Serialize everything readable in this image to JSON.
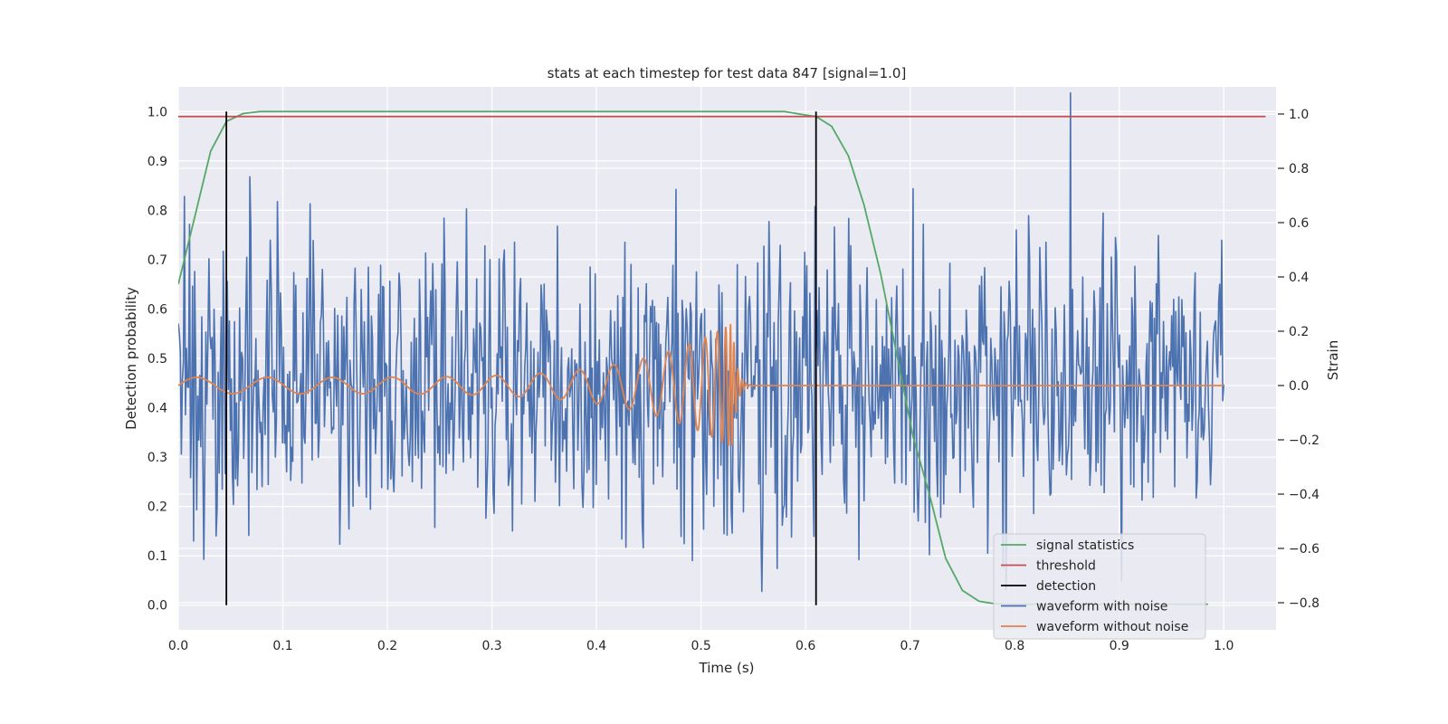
{
  "chart_data": {
    "type": "line",
    "title": "stats at each timestep for test data 847 [signal=1.0]",
    "xlabel": "Time (s)",
    "ylabel_left": "Detection probability",
    "ylabel_right": "Strain",
    "xlim": [
      0.0,
      1.05
    ],
    "ylim_left": [
      -0.05,
      1.05
    ],
    "ylim_right": [
      -0.9,
      1.1
    ],
    "x_ticks": [
      "0.0",
      "0.1",
      "0.2",
      "0.3",
      "0.4",
      "0.5",
      "0.6",
      "0.7",
      "0.8",
      "0.9",
      "1.0"
    ],
    "y_ticks_left": [
      "0.0",
      "0.1",
      "0.2",
      "0.3",
      "0.4",
      "0.5",
      "0.6",
      "0.7",
      "0.8",
      "0.9",
      "1.0"
    ],
    "y_ticks_right": [
      "−0.8",
      "−0.6",
      "−0.4",
      "−0.2",
      "0.0",
      "0.2",
      "0.4",
      "0.6",
      "0.8",
      "1.0"
    ],
    "grid": true,
    "legend_placement": "lower-right",
    "legend": [
      {
        "label": "signal statistics",
        "color": "#55a868"
      },
      {
        "label": "threshold",
        "color": "#c44e52"
      },
      {
        "label": "detection",
        "color": "#000000"
      },
      {
        "label": "waveform with noise",
        "color": "#4c72b0"
      },
      {
        "label": "waveform without noise",
        "color": "#dd8452"
      }
    ],
    "signal_statistics": {
      "axis": "left",
      "x": [
        0.0,
        0.015,
        0.031,
        0.046,
        0.062,
        0.078,
        0.1,
        0.2,
        0.3,
        0.4,
        0.5,
        0.58,
        0.594,
        0.61,
        0.625,
        0.641,
        0.656,
        0.672,
        0.688,
        0.703,
        0.719,
        0.734,
        0.75,
        0.766,
        0.781,
        0.797,
        0.82,
        0.85,
        0.9,
        0.95,
        0.985
      ],
      "y": [
        0.65,
        0.78,
        0.92,
        0.98,
        0.996,
        1.0,
        1.0,
        1.0,
        1.0,
        1.0,
        1.0,
        1.0,
        0.995,
        0.99,
        0.97,
        0.91,
        0.81,
        0.67,
        0.5,
        0.34,
        0.22,
        0.095,
        0.03,
        0.008,
        0.003,
        0.002,
        0.002,
        0.002,
        0.002,
        0.002,
        0.002
      ]
    },
    "threshold": {
      "axis": "left",
      "value": 0.99,
      "x_range": [
        0.0,
        1.04
      ]
    },
    "detections": {
      "axis": "left",
      "x": [
        0.046,
        0.61
      ],
      "y_range": [
        0.0,
        1.0
      ]
    },
    "waveform_with_noise": {
      "axis": "right",
      "x_range": [
        0.0,
        1.0
      ],
      "num_points": 1024,
      "value_range": [
        -0.85,
        1.1
      ],
      "std": 0.27,
      "seed": 847
    },
    "waveform_without_noise": {
      "axis": "right",
      "x_range": [
        0.0,
        1.0
      ],
      "merger_time": 0.53,
      "peak_amplitude": 0.23,
      "early_amplitude": 0.03,
      "ringdown_end": 0.55,
      "post_merger_value": 0.0
    }
  }
}
